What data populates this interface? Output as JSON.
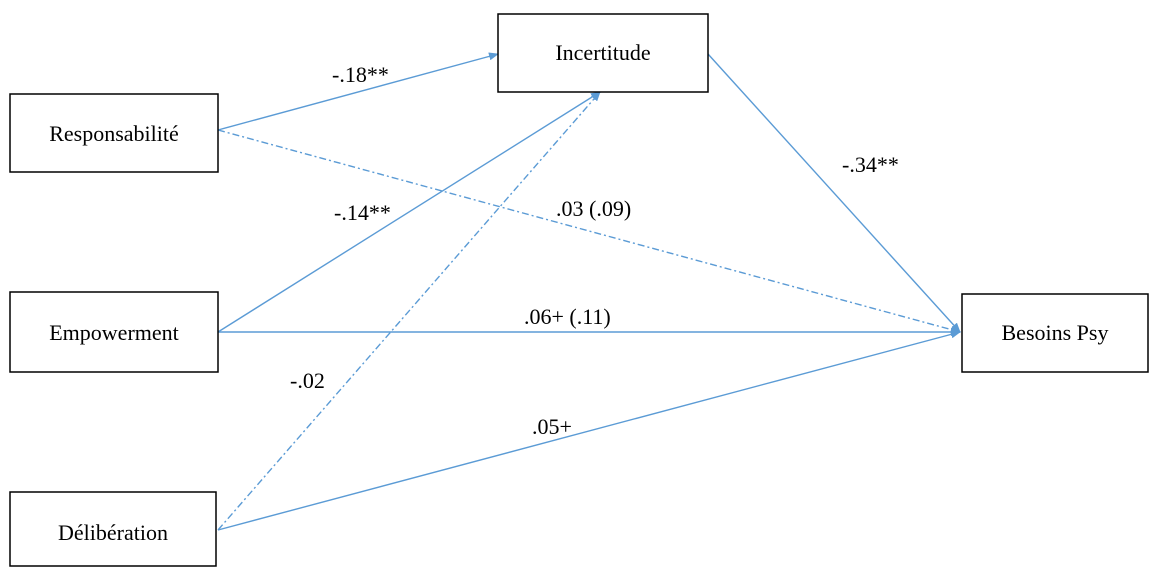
{
  "nodes": {
    "responsabilite": "Responsabilité",
    "empowerment": "Empowerment",
    "deliberation": "Délibération",
    "incertitude": "Incertitude",
    "besoins_psy": "Besoins Psy"
  },
  "edges": {
    "responsabilite_incertitude": "-.18**",
    "empowerment_incertitude": "-.14**",
    "deliberation_incertitude": "-.02",
    "incertitude_besoins": "-.34**",
    "responsabilite_besoins": ".03 (.09)",
    "empowerment_besoins": ".06+ (.11)",
    "deliberation_besoins": ".05+"
  },
  "colors": {
    "arrow": "#5b9bd5",
    "box_border": "#000000"
  }
}
